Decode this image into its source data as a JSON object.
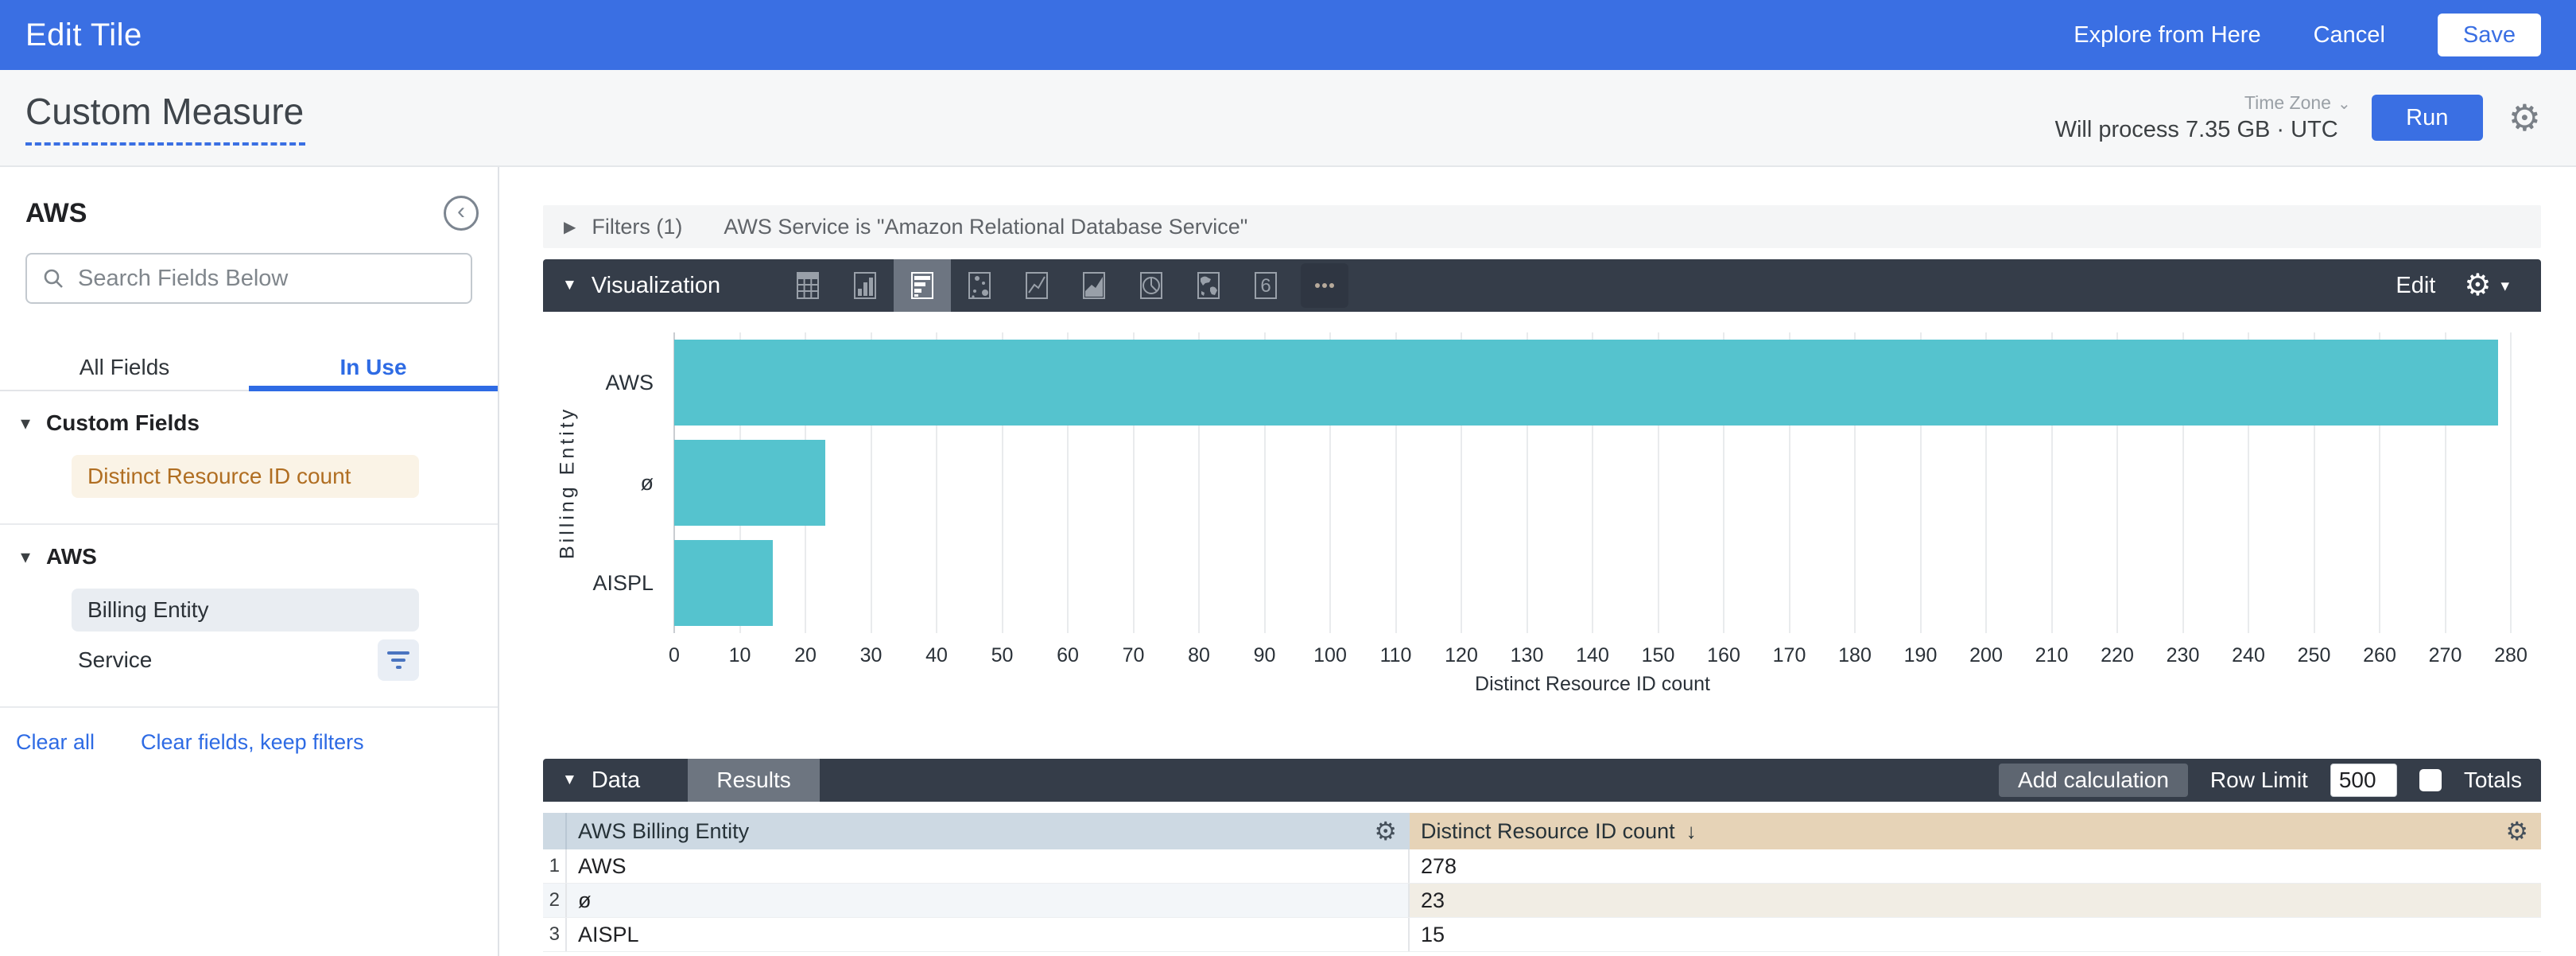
{
  "colors": {
    "header_blue": "#3a6fe3",
    "dark_bar": "#353d49",
    "bar_teal": "#55c3ce",
    "measure_tint": "#e6d3b7",
    "dimension_tint": "#cdd9e3"
  },
  "top_bar": {
    "title": "Edit Tile",
    "explore_label": "Explore from Here",
    "cancel_label": "Cancel",
    "save_label": "Save"
  },
  "query_bar": {
    "title": "Custom Measure",
    "timezone_label": "Time Zone",
    "process_text": "Will process 7.35 GB · UTC",
    "run_label": "Run"
  },
  "sidebar": {
    "title": "AWS",
    "search_placeholder": "Search Fields Below",
    "tabs": [
      {
        "label": "All Fields",
        "active": false
      },
      {
        "label": "In Use",
        "active": true
      }
    ],
    "sections": [
      {
        "name": "Custom Fields",
        "fields": [
          {
            "label": "Distinct Resource ID count",
            "style": "measure"
          }
        ]
      },
      {
        "name": "AWS",
        "fields": [
          {
            "label": "Billing Entity",
            "style": "dimension"
          },
          {
            "label": "Service",
            "style": "plain",
            "filtered": true
          }
        ]
      }
    ],
    "footer_links": [
      "Clear all",
      "Clear fields, keep filters"
    ]
  },
  "filters_bar": {
    "label": "Filters (1)",
    "summary": "AWS Service is \"Amazon Relational Database Service\""
  },
  "viz_bar": {
    "label": "Visualization",
    "edit_label": "Edit",
    "icons": [
      {
        "name": "table-chart-icon",
        "glyph": "table",
        "selected": false
      },
      {
        "name": "column-chart-icon",
        "glyph": "column",
        "selected": false
      },
      {
        "name": "bar-chart-icon",
        "glyph": "bar",
        "selected": true
      },
      {
        "name": "scatter-chart-icon",
        "glyph": "scatter",
        "selected": false
      },
      {
        "name": "line-chart-icon",
        "glyph": "line",
        "selected": false
      },
      {
        "name": "area-chart-icon",
        "glyph": "area",
        "selected": false
      },
      {
        "name": "pie-chart-icon",
        "glyph": "pie",
        "selected": false
      },
      {
        "name": "map-chart-icon",
        "glyph": "map",
        "selected": false
      },
      {
        "name": "single-value-icon",
        "glyph": "single",
        "selected": false
      },
      {
        "name": "more-viz-types-icon",
        "glyph": "more",
        "selected": false
      }
    ]
  },
  "chart_data": {
    "type": "bar",
    "orientation": "horizontal",
    "categories": [
      "AWS",
      "ø",
      "AISPL"
    ],
    "values": [
      278,
      23,
      15
    ],
    "title": "",
    "xlabel": "Distinct Resource ID count",
    "ylabel": "Billing Entity",
    "xlim": [
      0,
      280
    ],
    "tick_step": 10,
    "grid": true,
    "legend": false,
    "bar_color": "#55c3ce"
  },
  "data_bar": {
    "label": "Data",
    "results_tab": "Results",
    "add_calculation_label": "Add calculation",
    "row_limit_label": "Row Limit",
    "row_limit_value": "500",
    "totals_label": "Totals",
    "totals_checked": false
  },
  "table": {
    "columns": [
      {
        "label": "AWS Billing Entity",
        "type": "dimension"
      },
      {
        "label": "Distinct Resource ID count",
        "type": "measure",
        "sorted": "desc"
      }
    ],
    "rows": [
      {
        "index": "1",
        "billing_entity": "AWS",
        "count": "278"
      },
      {
        "index": "2",
        "billing_entity": "ø",
        "count": "23"
      },
      {
        "index": "3",
        "billing_entity": "AISPL",
        "count": "15"
      }
    ]
  }
}
